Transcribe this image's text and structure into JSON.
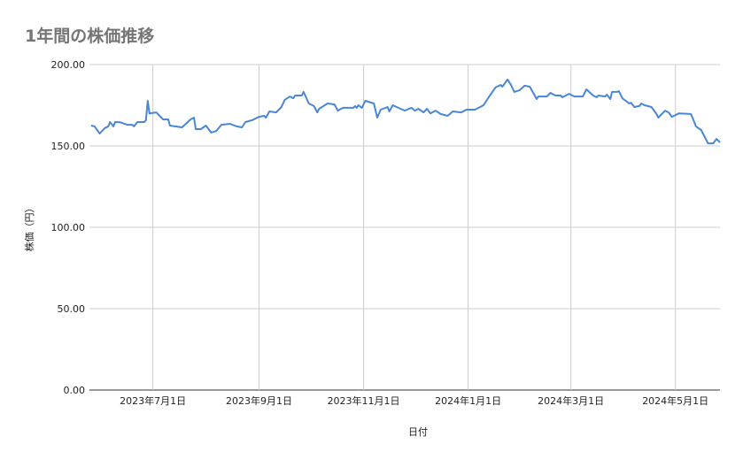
{
  "chart_data": {
    "type": "line",
    "title": "1年間の株価推移",
    "xlabel": "日付",
    "ylabel": "株価（円）",
    "ylim": [
      0,
      200
    ],
    "xlim": [
      "2023-05-25",
      "2024-05-27"
    ],
    "grid": true,
    "legend": "none",
    "line_color": "#4a86d8",
    "y_ticks": [
      {
        "value": 0,
        "label": "0.00"
      },
      {
        "value": 50,
        "label": "50.00"
      },
      {
        "value": 100,
        "label": "100.00"
      },
      {
        "value": 150,
        "label": "150.00"
      },
      {
        "value": 200,
        "label": "200.00"
      }
    ],
    "x_ticks": [
      {
        "date": "2023-07-01",
        "label": "2023年7月1日"
      },
      {
        "date": "2023-09-01",
        "label": "2023年9月1日"
      },
      {
        "date": "2023-11-01",
        "label": "2023年11月1日"
      },
      {
        "date": "2024-01-01",
        "label": "2024年1月1日"
      },
      {
        "date": "2024-03-01",
        "label": "2024年3月1日"
      },
      {
        "date": "2024-05-01",
        "label": "2024年5月1日"
      }
    ],
    "series": [
      {
        "points": [
          [
            "2023-05-26",
            162.5
          ],
          [
            "2023-05-28",
            162
          ],
          [
            "2023-05-31",
            157.6
          ],
          [
            "2023-06-03",
            161
          ],
          [
            "2023-06-05",
            162
          ],
          [
            "2023-06-06",
            164.7
          ],
          [
            "2023-06-08",
            162
          ],
          [
            "2023-06-09",
            164.7
          ],
          [
            "2023-06-12",
            164.5
          ],
          [
            "2023-06-16",
            163
          ],
          [
            "2023-06-19",
            163
          ],
          [
            "2023-06-20",
            162
          ],
          [
            "2023-06-22",
            164.7
          ],
          [
            "2023-06-26",
            164.7
          ],
          [
            "2023-06-27",
            165.8
          ],
          [
            "2023-06-28",
            177.7
          ],
          [
            "2023-06-29",
            170
          ],
          [
            "2023-07-03",
            170.6
          ],
          [
            "2023-07-07",
            166.3
          ],
          [
            "2023-07-10",
            166.3
          ],
          [
            "2023-07-11",
            162.5
          ],
          [
            "2023-07-18",
            161.4
          ],
          [
            "2023-07-23",
            166.3
          ],
          [
            "2023-07-25",
            167.4
          ],
          [
            "2023-07-26",
            160.3
          ],
          [
            "2023-07-29",
            160.3
          ],
          [
            "2023-08-01",
            162.5
          ],
          [
            "2023-08-04",
            158.2
          ],
          [
            "2023-08-07",
            159.2
          ],
          [
            "2023-08-10",
            163
          ],
          [
            "2023-08-15",
            163.6
          ],
          [
            "2023-08-19",
            162
          ],
          [
            "2023-08-22",
            161.4
          ],
          [
            "2023-08-24",
            164.7
          ],
          [
            "2023-08-28",
            165.8
          ],
          [
            "2023-09-01",
            167.9
          ],
          [
            "2023-09-04",
            168.5
          ],
          [
            "2023-09-05",
            167.4
          ],
          [
            "2023-09-07",
            171.2
          ],
          [
            "2023-09-11",
            170.6
          ],
          [
            "2023-09-14",
            173.9
          ],
          [
            "2023-09-16",
            178.3
          ],
          [
            "2023-09-19",
            180.4
          ],
          [
            "2023-09-21",
            179.3
          ],
          [
            "2023-09-22",
            181
          ],
          [
            "2023-09-26",
            181
          ],
          [
            "2023-09-27",
            183.2
          ],
          [
            "2023-09-30",
            176.1
          ],
          [
            "2023-10-03",
            174.5
          ],
          [
            "2023-10-05",
            170.6
          ],
          [
            "2023-10-06",
            172.8
          ],
          [
            "2023-10-11",
            176.1
          ],
          [
            "2023-10-15",
            175.5
          ],
          [
            "2023-10-17",
            171.7
          ],
          [
            "2023-10-20",
            173.4
          ],
          [
            "2023-10-26",
            173.4
          ],
          [
            "2023-10-27",
            174.5
          ],
          [
            "2023-10-28",
            173.4
          ],
          [
            "2023-10-29",
            175
          ],
          [
            "2023-10-31",
            173.4
          ],
          [
            "2023-11-02",
            177.7
          ],
          [
            "2023-11-07",
            176.1
          ],
          [
            "2023-11-09",
            167.4
          ],
          [
            "2023-11-11",
            172.3
          ],
          [
            "2023-11-15",
            173.9
          ],
          [
            "2023-11-16",
            171.2
          ],
          [
            "2023-11-18",
            175
          ],
          [
            "2023-11-25",
            171.7
          ],
          [
            "2023-11-29",
            173.4
          ],
          [
            "2023-12-01",
            171.7
          ],
          [
            "2023-12-03",
            172.8
          ],
          [
            "2023-12-06",
            170.6
          ],
          [
            "2023-12-08",
            172.8
          ],
          [
            "2023-12-10",
            170
          ],
          [
            "2023-12-13",
            171.7
          ],
          [
            "2023-12-16",
            169.6
          ],
          [
            "2023-12-20",
            168.5
          ],
          [
            "2023-12-23",
            171.2
          ],
          [
            "2023-12-28",
            170.6
          ],
          [
            "2023-12-31",
            172.3
          ],
          [
            "2024-01-05",
            172.3
          ],
          [
            "2024-01-08",
            173.9
          ],
          [
            "2024-01-10",
            175
          ],
          [
            "2024-01-13",
            179.9
          ],
          [
            "2024-01-17",
            185.9
          ],
          [
            "2024-01-20",
            187.5
          ],
          [
            "2024-01-21",
            186.4
          ],
          [
            "2024-01-24",
            190.8
          ],
          [
            "2024-01-26",
            187.5
          ],
          [
            "2024-01-28",
            183.2
          ],
          [
            "2024-01-31",
            184.2
          ],
          [
            "2024-02-03",
            187
          ],
          [
            "2024-02-06",
            186.4
          ],
          [
            "2024-02-08",
            182.6
          ],
          [
            "2024-02-10",
            178.8
          ],
          [
            "2024-02-11",
            180.4
          ],
          [
            "2024-02-16",
            180.4
          ],
          [
            "2024-02-18",
            182.6
          ],
          [
            "2024-02-21",
            181
          ],
          [
            "2024-02-24",
            181
          ],
          [
            "2024-02-25",
            179.9
          ],
          [
            "2024-02-29",
            182
          ],
          [
            "2024-03-03",
            180.4
          ],
          [
            "2024-03-08",
            180.4
          ],
          [
            "2024-03-10",
            184.8
          ],
          [
            "2024-03-14",
            181
          ],
          [
            "2024-03-16",
            179.9
          ],
          [
            "2024-03-17",
            181
          ],
          [
            "2024-03-21",
            180.4
          ],
          [
            "2024-03-22",
            181.5
          ],
          [
            "2024-03-24",
            178.8
          ],
          [
            "2024-03-25",
            183.2
          ],
          [
            "2024-03-28",
            183.2
          ],
          [
            "2024-03-29",
            183.7
          ],
          [
            "2024-03-31",
            179.3
          ],
          [
            "2024-04-02",
            177.7
          ],
          [
            "2024-04-04",
            176.1
          ],
          [
            "2024-04-05",
            176.6
          ],
          [
            "2024-04-07",
            173.9
          ],
          [
            "2024-04-10",
            174.5
          ],
          [
            "2024-04-11",
            176.1
          ],
          [
            "2024-04-13",
            175
          ],
          [
            "2024-04-17",
            173.9
          ],
          [
            "2024-04-20",
            169.6
          ],
          [
            "2024-04-21",
            167.4
          ],
          [
            "2024-04-25",
            171.7
          ],
          [
            "2024-04-27",
            170.6
          ],
          [
            "2024-04-29",
            167.9
          ],
          [
            "2024-05-03",
            170
          ],
          [
            "2024-05-10",
            169.6
          ],
          [
            "2024-05-11",
            167.4
          ],
          [
            "2024-05-13",
            162
          ],
          [
            "2024-05-16",
            159.8
          ],
          [
            "2024-05-20",
            151.6
          ],
          [
            "2024-05-23",
            151.6
          ],
          [
            "2024-05-25",
            154.3
          ],
          [
            "2024-05-27",
            152.2
          ]
        ]
      }
    ]
  }
}
